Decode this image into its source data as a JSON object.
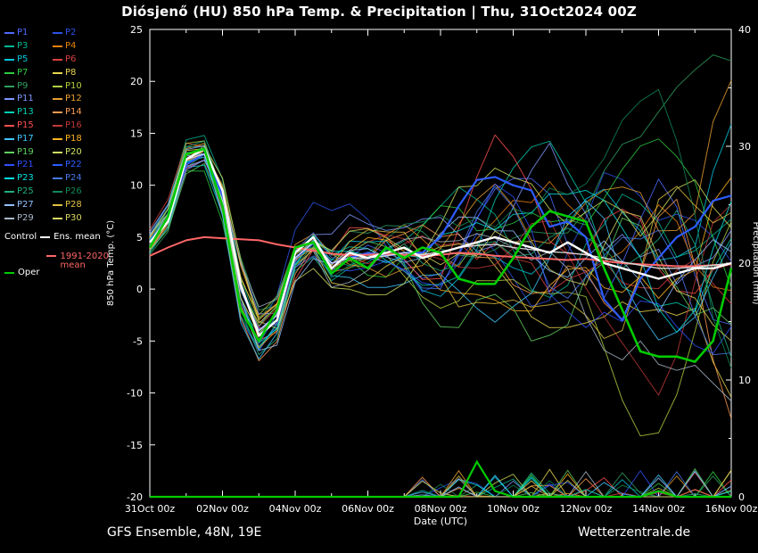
{
  "header": {
    "title": "Diósjenő  (HU)  850 hPa Temp. & Precipitation | Thu, 31Oct2024 00Z"
  },
  "footer": {
    "left": "GFS Ensemble, 48N, 19E",
    "right": "Wetterzentrale.de"
  },
  "legend": {
    "control": "Control",
    "ens_mean": "Ens. mean",
    "oper": "Oper",
    "climate": "1991-2020 mean"
  },
  "chart_data": {
    "type": "line",
    "title": "Diósjenő  (HU)  850 hPa Temp. & Precipitation | Thu, 31Oct2024 00Z",
    "xlabel": "Date (UTC)",
    "ylabel_left": "850 hPa Temp. (°C)",
    "ylabel_right": "Precipitation (mm)",
    "temp_axis": {
      "min": -20,
      "max": 25,
      "step": 5
    },
    "precip_axis": {
      "min": 0,
      "max": 40,
      "step": 10
    },
    "x_hours": [
      0,
      12,
      24,
      36,
      48,
      60,
      72,
      84,
      96,
      108,
      120,
      132,
      144,
      156,
      168,
      180,
      192,
      204,
      216,
      228,
      240,
      252,
      264,
      276,
      288,
      300,
      312,
      324,
      336,
      348,
      360,
      372,
      384
    ],
    "x_tick_hours": [
      0,
      48,
      96,
      144,
      192,
      240,
      288,
      336,
      384
    ],
    "x_tick_labels": [
      "31Oct 00z",
      "02Nov 00z",
      "04Nov 00z",
      "06Nov 00z",
      "08Nov 00z",
      "10Nov 00z",
      "12Nov 00z",
      "14Nov 00z",
      "16Nov 00z"
    ],
    "series": {
      "control": {
        "label": "Control",
        "color": "#ffffff",
        "values": [
          4.5,
          6.5,
          12.5,
          13.5,
          9.5,
          0.5,
          -4.5,
          -3,
          3.5,
          5,
          2,
          3.5,
          3,
          3.5,
          4,
          3,
          3.5,
          4,
          4.5,
          5,
          4.5,
          4,
          3.5,
          4.5,
          3.5,
          2.5,
          2,
          1.5,
          1,
          1.5,
          2,
          2,
          2.5
        ]
      },
      "ens_mean": {
        "label": "Ens. mean",
        "color": "#d8d8d8",
        "values": [
          4.5,
          7,
          12.5,
          13,
          8.5,
          0,
          -4,
          -2.5,
          3,
          4.5,
          2.5,
          3,
          3,
          3.2,
          3.5,
          3.3,
          3.6,
          4,
          4.2,
          4.3,
          4,
          3.8,
          3.6,
          3.5,
          3.3,
          3,
          2.6,
          2.3,
          2,
          2,
          2.1,
          2.3,
          2.5
        ]
      },
      "oper": {
        "label": "Oper",
        "color": "#00cc00",
        "values": [
          4,
          7,
          13,
          13.5,
          8,
          -2,
          -5,
          -2,
          4,
          4.5,
          1.5,
          3,
          2,
          4,
          3,
          4,
          3.5,
          1,
          0.5,
          0.5,
          3,
          6,
          7.5,
          7,
          6.5,
          2,
          -2,
          -6,
          -6.5,
          -6.5,
          -7,
          -5,
          2
        ]
      },
      "climate_mean": {
        "label": "1991-2020 mean",
        "color": "#ff6666",
        "values": [
          3.2,
          4,
          4.7,
          5,
          4.9,
          4.8,
          4.7,
          4.3,
          4,
          3.7,
          3.4,
          3.3,
          3.3,
          3.4,
          3.3,
          3.2,
          3.3,
          3.5,
          3.4,
          3.2,
          3.1,
          3,
          2.9,
          2.8,
          2.9,
          2.7,
          2.5,
          2.4,
          2.3,
          2.2,
          2.2,
          2.3,
          2.4
        ]
      },
      "highlight_member": {
        "label": "P22",
        "color": "#2e5cff",
        "values": [
          4.5,
          7,
          12,
          13,
          9,
          0,
          -4,
          -2.5,
          3,
          4.5,
          2.5,
          3,
          3.5,
          3.2,
          3.5,
          3.5,
          5,
          8,
          10.5,
          10.8,
          10,
          9.5,
          6,
          6.5,
          5,
          -1,
          -3,
          1,
          3,
          5,
          6,
          8.5,
          9
        ]
      }
    },
    "oper_precip": [
      0,
      0,
      0,
      0,
      0,
      0,
      0,
      0,
      0,
      0,
      0,
      0,
      0,
      0,
      0,
      0,
      0,
      0,
      3,
      0.5,
      0,
      0,
      0,
      0,
      0,
      0,
      0,
      0,
      0.5,
      0,
      0,
      0,
      0
    ],
    "ensemble": {
      "envelope_mean": [
        4.5,
        7,
        12.5,
        13,
        8.5,
        0,
        -4,
        -2.5,
        3,
        4.5,
        2.5,
        3,
        3,
        3.2,
        3.5,
        3.3,
        3.6,
        4,
        4.2,
        4.3,
        4,
        3.8,
        3.6,
        3.5,
        3.3,
        3,
        2.6,
        2.3,
        2,
        2,
        2.1,
        2.3,
        2.5
      ],
      "envelope_spread": [
        0.5,
        0.8,
        1,
        1,
        1.5,
        2,
        1.5,
        1.5,
        1.5,
        1.5,
        1.8,
        2,
        2,
        2,
        2.2,
        2.5,
        3,
        3.5,
        3.5,
        4,
        4,
        4.5,
        5,
        5,
        5,
        5.5,
        6,
        6,
        6.5,
        6.5,
        6.5,
        6.5,
        6
      ],
      "members": [
        {
          "label": "P1",
          "color": "#4f6bff"
        },
        {
          "label": "P2",
          "color": "#2a52e8"
        },
        {
          "label": "P3",
          "color": "#00b894"
        },
        {
          "label": "P4",
          "color": "#e8820c"
        },
        {
          "label": "P5",
          "color": "#00c8e0"
        },
        {
          "label": "P6",
          "color": "#d94040"
        },
        {
          "label": "P7",
          "color": "#2ecc40"
        },
        {
          "label": "P8",
          "color": "#e8d44d"
        },
        {
          "label": "P9",
          "color": "#30a060"
        },
        {
          "label": "P10",
          "color": "#b0d040"
        },
        {
          "label": "P11",
          "color": "#8098ff"
        },
        {
          "label": "P12",
          "color": "#e8a030"
        },
        {
          "label": "P13",
          "color": "#00d2b4"
        },
        {
          "label": "P14",
          "color": "#ff9c50"
        },
        {
          "label": "P15",
          "color": "#ff5050"
        },
        {
          "label": "P16",
          "color": "#c03838"
        },
        {
          "label": "P17",
          "color": "#40c8ff"
        },
        {
          "label": "P18",
          "color": "#ffb420"
        },
        {
          "label": "P19",
          "color": "#60d060"
        },
        {
          "label": "P20",
          "color": "#d0e060"
        },
        {
          "label": "P21",
          "color": "#3050ff"
        },
        {
          "label": "P22",
          "color": "#2e5cff"
        },
        {
          "label": "P23",
          "color": "#00e0e0"
        },
        {
          "label": "P24",
          "color": "#4878e8"
        },
        {
          "label": "P25",
          "color": "#20b080"
        },
        {
          "label": "P26",
          "color": "#108858"
        },
        {
          "label": "P27",
          "color": "#90c0ff"
        },
        {
          "label": "P28",
          "color": "#e0c040"
        },
        {
          "label": "P29",
          "color": "#a8b8c8"
        },
        {
          "label": "P30",
          "color": "#d8d860"
        }
      ]
    }
  }
}
